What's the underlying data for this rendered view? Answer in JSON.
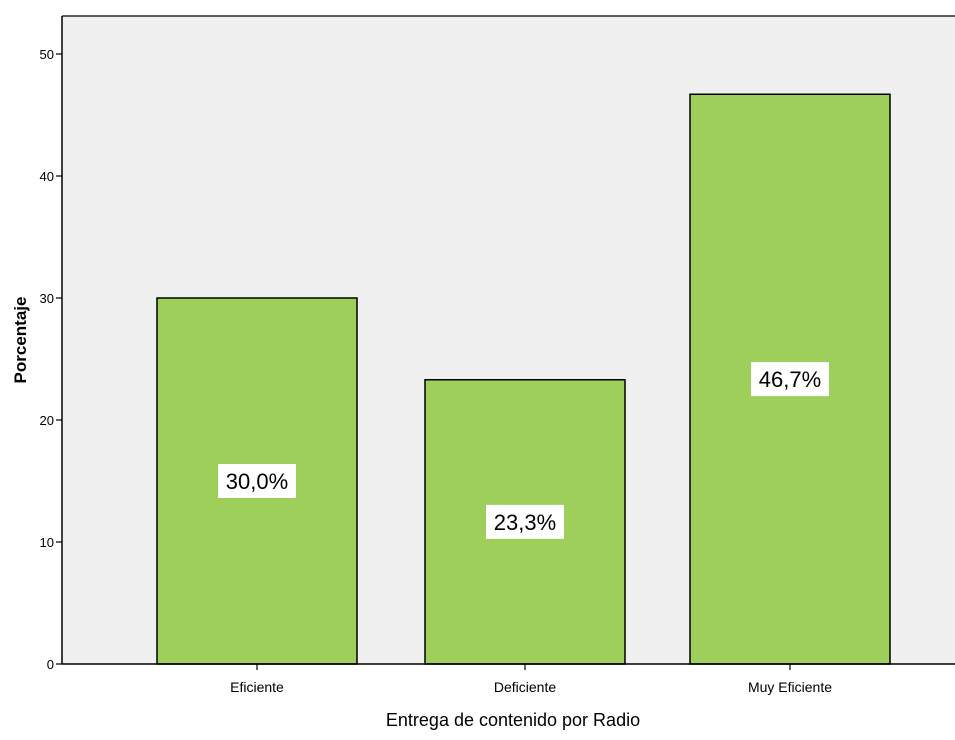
{
  "chart_data": {
    "type": "bar",
    "categories": [
      "Eficiente",
      "Deficiente",
      "Muy Eficiente"
    ],
    "values": [
      30.0,
      23.3,
      46.7
    ],
    "data_labels": [
      "30,0%",
      "23,3%",
      "46,7%"
    ],
    "xlabel": "Entrega de contenido por Radio",
    "ylabel": "Porcentaje",
    "ylim": [
      0,
      50
    ],
    "yticks": [
      "0",
      "10",
      "20",
      "30",
      "40",
      "50"
    ],
    "grid": false,
    "colors": {
      "bar_fill": "#9ecf5a",
      "bar_stroke": "#000000",
      "plot_background": "#f0f0f0",
      "axis": "#000000",
      "label_box": "#ffffff"
    }
  }
}
